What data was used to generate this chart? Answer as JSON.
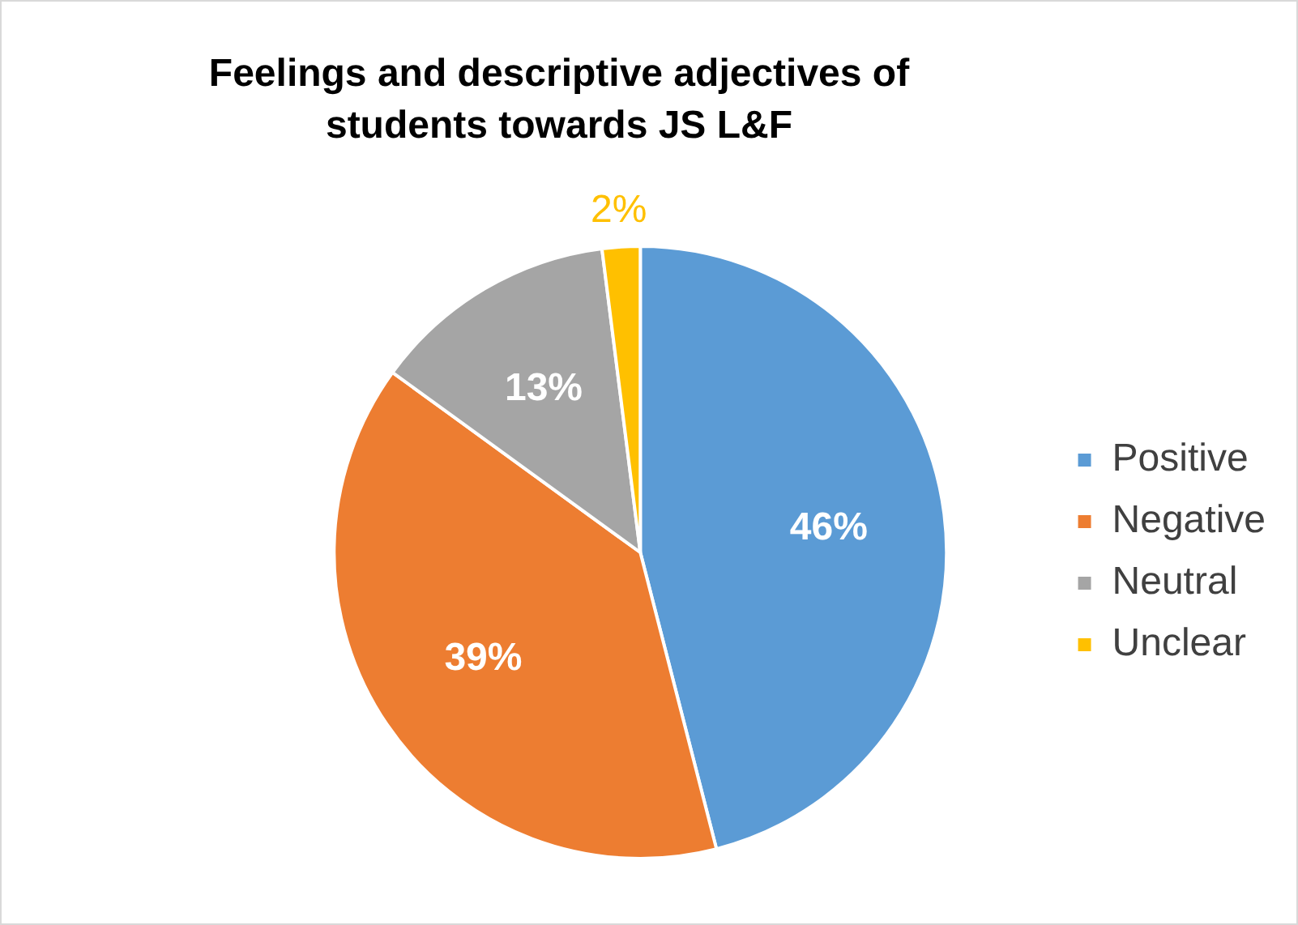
{
  "chart_data": {
    "type": "pie",
    "title": "Feelings and descriptive adjectives of students towards JS L&F",
    "categories": [
      "Positive",
      "Negative",
      "Neutral",
      "Unclear"
    ],
    "values": [
      46,
      39,
      13,
      2
    ],
    "colors": [
      "#5b9bd5",
      "#ed7d31",
      "#a5a5a5",
      "#ffc000"
    ],
    "value_labels": [
      "46%",
      "39%",
      "13%",
      "2%"
    ],
    "legend": "right"
  }
}
